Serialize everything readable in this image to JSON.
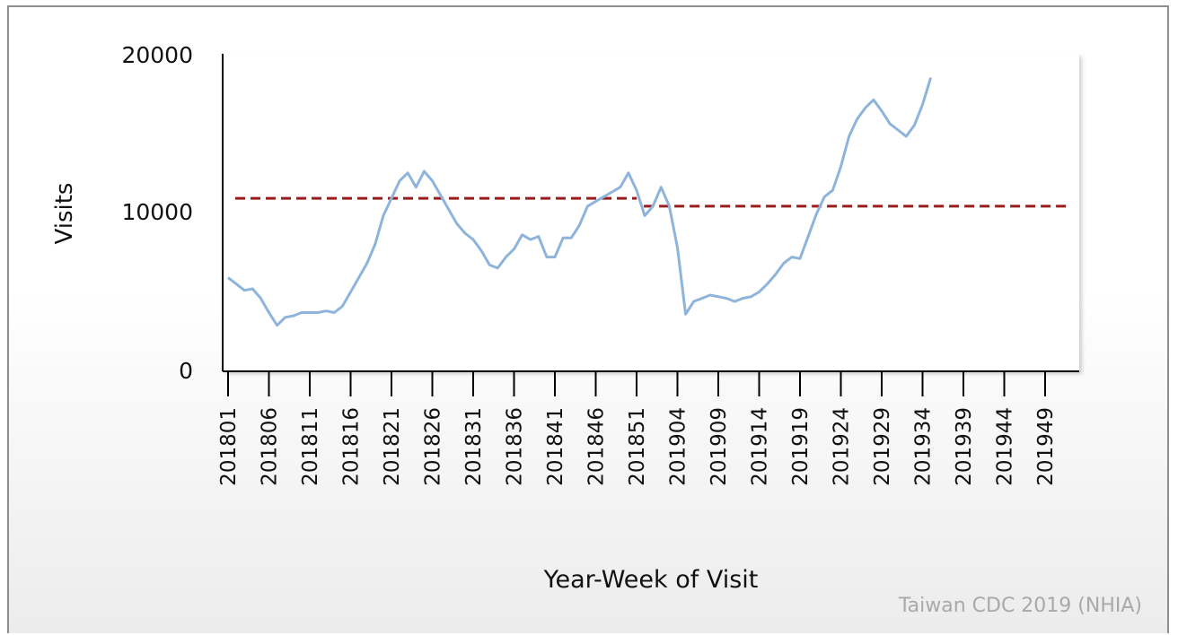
{
  "source": "Taiwan CDC 2019 (NHIA)",
  "chart_data": {
    "type": "line",
    "xlabel": "Year-Week of Visit",
    "ylabel": "Visits",
    "ylim": [
      0,
      20000
    ],
    "yticks": [
      0,
      10000,
      20000
    ],
    "grid": false,
    "x_tick_labels": [
      "201801",
      "201806",
      "201811",
      "201816",
      "201821",
      "201826",
      "201831",
      "201836",
      "201841",
      "201846",
      "201851",
      "201904",
      "201909",
      "201914",
      "201919",
      "201924",
      "201929",
      "201934",
      "201939",
      "201944",
      "201949"
    ],
    "series": [
      {
        "color": "#8fb4dc",
        "values": [
          5900,
          5500,
          5100,
          5200,
          4600,
          3700,
          2900,
          3400,
          3500,
          3700,
          3700,
          3700,
          3800,
          3700,
          4100,
          5000,
          5900,
          6800,
          8000,
          9800,
          10900,
          12000,
          12500,
          11600,
          12600,
          12000,
          11100,
          10200,
          9300,
          8700,
          8300,
          7600,
          6700,
          6500,
          7200,
          7700,
          8600,
          8300,
          8500,
          7200,
          7200,
          8400,
          8400,
          9200,
          10400,
          10700,
          11000,
          11300,
          11600,
          12500,
          11400,
          9800,
          10400,
          11600,
          10400,
          7800,
          3600,
          4400,
          4600,
          4800,
          4700,
          4600,
          4400,
          4600,
          4700,
          5000,
          5500,
          6100,
          6800,
          7200,
          7100,
          8500,
          9900,
          11000,
          11400,
          12900,
          14800,
          15900,
          16600,
          17100,
          16400,
          15600,
          15200,
          14800,
          15500,
          16800,
          18500
        ]
      },
      {
        "style": "dashed",
        "color": "#9b1c1c",
        "segments": [
          {
            "x_from": "201801",
            "x_to": "201851",
            "value": 10900
          },
          {
            "x_from": "201852",
            "x_to": "201952",
            "value": 10400
          }
        ]
      }
    ]
  }
}
